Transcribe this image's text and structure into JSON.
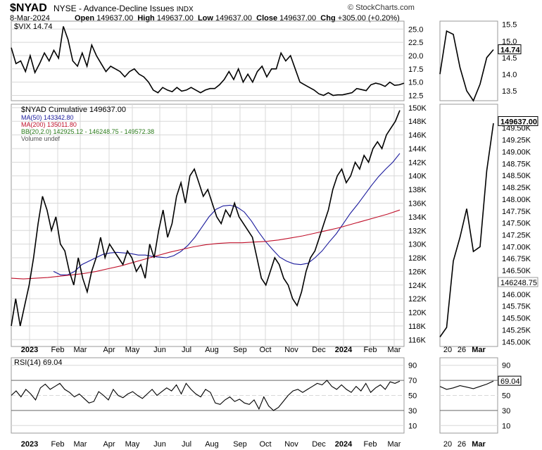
{
  "header": {
    "symbol": "$NYAD",
    "description": "NYSE - Advance-Decline Issues",
    "exchange": "INDX",
    "date": "8-Mar-2024",
    "open_label": "Open",
    "open": "149637.00",
    "high_label": "High",
    "high": "149637.00",
    "low_label": "Low",
    "low": "149637.00",
    "close_label": "Close",
    "close": "149637.00",
    "chg_label": "Chg",
    "chg": "+305.00 (+0.20%)",
    "brand": "© StockCharts.com"
  },
  "colors": {
    "price": "#000000",
    "down": "#c0001a",
    "ma50": "#1a1a9c",
    "ma200": "#c0102a",
    "bb": "#2a7a1a",
    "grid": "#d8d8d8"
  },
  "chart_data": [
    {
      "type": "line",
      "title": "$VIX 14.74",
      "last_value": "14.74",
      "ylim": [
        11.5,
        26.5
      ],
      "yticks": [
        "25.0",
        "22.5",
        "20.0",
        "17.5",
        "15.0",
        "12.5"
      ],
      "zoom_yticks": [
        "15.5",
        "15.0",
        "14.5",
        "14.0",
        "13.5"
      ],
      "series": [
        {
          "name": "$VIX",
          "values": [
            21.5,
            18.5,
            19,
            17,
            20,
            16.8,
            18.5,
            20.5,
            19,
            21,
            19.5,
            25.5,
            23,
            19,
            18,
            20.5,
            18,
            22,
            20,
            18.5,
            17,
            18,
            17.5,
            17,
            16,
            17,
            17.5,
            16.5,
            16,
            15,
            13.5,
            13,
            14,
            13.5,
            13.2,
            14,
            13.3,
            13.5,
            14,
            13.5,
            13,
            13.5,
            13.8,
            13.8,
            14.5,
            15.5,
            17,
            15.5,
            17.5,
            15,
            16.5,
            15,
            17,
            18,
            16,
            17.5,
            17.5,
            20.5,
            19,
            20,
            17.5,
            15,
            14.5,
            14,
            13.5,
            12.8,
            12.5,
            13,
            12.5,
            12.6,
            12.6,
            12.8,
            13,
            13.8,
            13.6,
            13.4,
            14.5,
            14.8,
            14.6,
            14.2,
            15,
            14.4,
            14.5,
            14.8
          ]
        }
      ],
      "zoom_values": [
        14.0,
        15.3,
        15.2,
        14.2,
        13.5,
        13.2,
        13.7,
        14.5,
        14.74
      ]
    },
    {
      "type": "line",
      "title": "$NYAD Cumulative 149637.00",
      "legend": [
        {
          "label": "MA(50) 143342.80",
          "color": "#1a1a9c"
        },
        {
          "label": "MA(200) 135011.80",
          "color": "#c0102a"
        },
        {
          "label": "BB(20,2.0) 142925.12 - 146248.75 - 149572.38",
          "color": "#2a7a1a"
        },
        {
          "label": "Volume undef",
          "color": "#555555"
        }
      ],
      "ylim": [
        115,
        150.5
      ],
      "yticks": [
        "150K",
        "148K",
        "146K",
        "144K",
        "142K",
        "140K",
        "138K",
        "136K",
        "134K",
        "132K",
        "130K",
        "128K",
        "126K",
        "124K",
        "122K",
        "120K",
        "118K",
        "116K"
      ],
      "zoom_ylim": [
        144.9,
        150.0
      ],
      "zoom_yticks": [
        "149.50K",
        "149.25K",
        "149.00K",
        "148.75K",
        "148.50K",
        "148.25K",
        "148.00K",
        "147.75K",
        "147.50K",
        "147.25K",
        "147.00K",
        "146.75K",
        "146.50K",
        "146.25K",
        "146.00K",
        "145.75K",
        "145.50K",
        "145.25K",
        "145.00K"
      ],
      "zoom_labels": {
        "last": "149637.00",
        "mid": "146248.75"
      },
      "x_labels": [
        "2023",
        "Feb",
        "Mar",
        "Apr",
        "May",
        "Jun",
        "Jul",
        "Aug",
        "Sep",
        "Oct",
        "Nov",
        "Dec",
        "2024",
        "Feb",
        "Mar"
      ],
      "zoom_x_labels": [
        "20",
        "26",
        "Mar"
      ],
      "series": [
        {
          "name": "$NYAD",
          "values": [
            118,
            122,
            118,
            121,
            124,
            128,
            133,
            137,
            135,
            132,
            134,
            130,
            129,
            126,
            124,
            128,
            125,
            123,
            126,
            128,
            131,
            128,
            130,
            129,
            128,
            127,
            129,
            128,
            126,
            127,
            125,
            130,
            128,
            132,
            135,
            131,
            133,
            137,
            139,
            136,
            140,
            141,
            139,
            137,
            138,
            136,
            134,
            133,
            135,
            134,
            136,
            134,
            133,
            132,
            131,
            128,
            125,
            124,
            126,
            128,
            127,
            125,
            124,
            122,
            121,
            123,
            126,
            128,
            129,
            131,
            133,
            135,
            138,
            140,
            141,
            139,
            140,
            142,
            141,
            143,
            142,
            144,
            145,
            144,
            146,
            147,
            148,
            149.6
          ]
        },
        {
          "name": "MA(50)",
          "values": [
            126,
            125.5,
            125.5,
            126,
            127,
            127.5,
            128,
            128.5,
            128.7,
            128.8,
            128.7,
            128.6,
            128.4,
            128.4,
            128.2,
            128.1,
            128,
            128.3,
            128.9,
            129.8,
            131,
            132.5,
            134,
            135.1,
            135.6,
            135.7,
            135.4,
            134.7,
            133.4,
            131.8,
            130.4,
            129.2,
            128.1,
            127.5,
            127.1,
            127,
            127.2,
            128,
            129,
            130.3,
            131.5,
            133,
            134.5,
            135.8,
            137.2,
            138.6,
            139.9,
            141,
            142,
            143.3
          ]
        },
        {
          "name": "MA(200)",
          "values": [
            125,
            124.9,
            125,
            125.1,
            125.3,
            125.5,
            125.7,
            126,
            126.4,
            126.8,
            127.3,
            127.8,
            128.3,
            128.8,
            129.2,
            129.6,
            129.9,
            130.1,
            130.2,
            130.2,
            130.3,
            130.4,
            130.6,
            130.9,
            131.2,
            131.6,
            132,
            132.4,
            132.9,
            133.4,
            133.9,
            134.4,
            135
          ]
        },
        {
          "name": "BB(20,2.0)",
          "values": [
            142.9,
            146.2,
            149.6
          ]
        }
      ],
      "zoom_values": [
        145.1,
        145.3,
        146.7,
        147.2,
        147.8,
        146.9,
        147.0,
        148.6,
        149.6
      ]
    },
    {
      "type": "line",
      "title": "RSI(14) 69.04",
      "last_value": "69.04",
      "ylim": [
        0,
        100
      ],
      "yticks": [
        "90",
        "70",
        "50",
        "30",
        "10"
      ],
      "series": [
        {
          "name": "RSI(14)",
          "values": [
            50,
            56,
            48,
            58,
            52,
            44,
            60,
            65,
            58,
            62,
            66,
            58,
            54,
            48,
            52,
            46,
            40,
            42,
            55,
            50,
            44,
            58,
            50,
            47,
            52,
            55,
            50,
            46,
            52,
            58,
            50,
            55,
            60,
            56,
            64,
            52,
            66,
            58,
            52,
            48,
            58,
            54,
            40,
            38,
            44,
            48,
            42,
            45,
            40,
            38,
            44,
            32,
            48,
            36,
            30,
            34,
            42,
            50,
            56,
            58,
            54,
            58,
            62,
            66,
            64,
            70,
            62,
            58,
            64,
            58,
            54,
            62,
            56,
            66,
            54,
            60,
            64,
            58,
            68,
            66,
            69
          ]
        }
      ],
      "zoom_values": [
        62,
        58,
        60,
        63,
        61,
        59,
        62,
        65,
        69.04
      ]
    }
  ]
}
